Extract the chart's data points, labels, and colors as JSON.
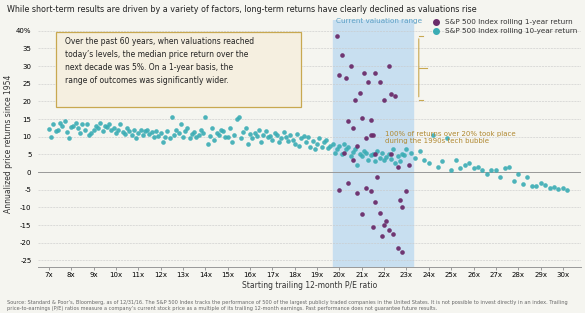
{
  "title": "While short-term results are driven by a variety of factors, long-term returns have clearly declined as valuations rise",
  "xlabel": "Starting trailing 12-month P/E ratio",
  "ylabel": "Annualized price returns since 1954",
  "xlim": [
    6.5,
    30.8
  ],
  "ylim": [
    -27,
    43
  ],
  "xticks": [
    7,
    8,
    9,
    10,
    11,
    12,
    13,
    14,
    15,
    16,
    17,
    18,
    19,
    20,
    21,
    22,
    23,
    24,
    25,
    26,
    27,
    28,
    29,
    30
  ],
  "yticks": [
    -25,
    -20,
    -15,
    -10,
    -5,
    0,
    5,
    10,
    15,
    20,
    25,
    30,
    35,
    40
  ],
  "ytick_labels": [
    "-25",
    "-20",
    "-15",
    "-10",
    "-5",
    "0",
    "5",
    "10",
    "15",
    "20",
    "25",
    "30",
    "35",
    "40%"
  ],
  "color_1yr": "#6b2d6b",
  "color_10yr": "#3aacb4",
  "shading_color": "#c8dff0",
  "shading_xmin": 19.7,
  "shading_xmax": 23.3,
  "bg_color": "#f5f5f0",
  "annotation_box_color": "#f5efe0",
  "annotation_box_edge": "#c8a850",
  "annotation_text": "Over the past 60 years, when valuations reached\ntoday’s levels, the median price return over the\nnext decade was 5%. On a 1-year basis, the\nrange of outcomes was significantly wider.",
  "current_valuation_label": "Current valuation range",
  "legend_1yr": "S&P 500 Index rolling 1-year return",
  "legend_10yr": "S&P 500 Index rolling 10-year return",
  "bubble_annotation": "100% of returns over 20% took place\nduring the 1990s tech bubble",
  "footnote": "Source: Standard & Poor’s, Bloomberg, as of 12/31/16. The S&P 500 Index tracks the performance of 500 of the largest publicly traded companies in the United States. It is not possible to invest directly in an index. Trailing price-to-earnings (P/E) ratios measure a company’s current stock price as a multiple of its trailing 12-month earnings. Past performance does not guarantee future results.",
  "data_10yr": [
    [
      7.0,
      12.2
    ],
    [
      7.1,
      10.0
    ],
    [
      7.2,
      13.5
    ],
    [
      7.3,
      11.5
    ],
    [
      7.4,
      12.0
    ],
    [
      7.5,
      14.0
    ],
    [
      7.6,
      13.0
    ],
    [
      7.7,
      14.5
    ],
    [
      7.8,
      11.2
    ],
    [
      7.9,
      9.5
    ],
    [
      8.0,
      12.8
    ],
    [
      8.1,
      13.0
    ],
    [
      8.2,
      14.0
    ],
    [
      8.3,
      12.5
    ],
    [
      8.4,
      11.0
    ],
    [
      8.5,
      13.5
    ],
    [
      8.6,
      12.0
    ],
    [
      8.7,
      13.5
    ],
    [
      8.8,
      10.5
    ],
    [
      8.9,
      11.0
    ],
    [
      9.0,
      12.0
    ],
    [
      9.1,
      13.0
    ],
    [
      9.2,
      12.5
    ],
    [
      9.3,
      14.0
    ],
    [
      9.4,
      11.5
    ],
    [
      9.5,
      13.0
    ],
    [
      9.6,
      12.8
    ],
    [
      9.7,
      13.5
    ],
    [
      9.8,
      11.8
    ],
    [
      9.9,
      12.5
    ],
    [
      10.0,
      11.0
    ],
    [
      10.1,
      12.0
    ],
    [
      10.2,
      13.5
    ],
    [
      10.3,
      11.2
    ],
    [
      10.4,
      10.8
    ],
    [
      10.5,
      12.5
    ],
    [
      10.6,
      11.5
    ],
    [
      10.7,
      10.5
    ],
    [
      10.8,
      11.8
    ],
    [
      10.9,
      9.5
    ],
    [
      11.0,
      11.0
    ],
    [
      11.1,
      12.0
    ],
    [
      11.2,
      10.5
    ],
    [
      11.3,
      11.5
    ],
    [
      11.4,
      12.0
    ],
    [
      11.5,
      10.8
    ],
    [
      11.6,
      11.2
    ],
    [
      11.7,
      9.8
    ],
    [
      11.8,
      11.5
    ],
    [
      11.9,
      10.2
    ],
    [
      12.0,
      11.0
    ],
    [
      12.1,
      8.5
    ],
    [
      12.2,
      10.0
    ],
    [
      12.3,
      11.5
    ],
    [
      12.4,
      9.5
    ],
    [
      12.5,
      15.5
    ],
    [
      12.6,
      10.5
    ],
    [
      12.7,
      12.0
    ],
    [
      12.8,
      11.0
    ],
    [
      12.9,
      13.5
    ],
    [
      13.0,
      10.0
    ],
    [
      13.1,
      11.5
    ],
    [
      13.2,
      12.5
    ],
    [
      13.3,
      9.5
    ],
    [
      13.4,
      10.8
    ],
    [
      13.5,
      11.2
    ],
    [
      13.6,
      9.8
    ],
    [
      13.7,
      10.5
    ],
    [
      13.8,
      12.0
    ],
    [
      13.9,
      11.0
    ],
    [
      14.0,
      15.5
    ],
    [
      14.1,
      8.0
    ],
    [
      14.2,
      10.2
    ],
    [
      14.3,
      12.5
    ],
    [
      14.4,
      9.0
    ],
    [
      14.5,
      11.0
    ],
    [
      14.6,
      10.5
    ],
    [
      14.7,
      12.0
    ],
    [
      14.8,
      11.5
    ],
    [
      14.9,
      9.8
    ],
    [
      15.0,
      10.0
    ],
    [
      15.1,
      12.5
    ],
    [
      15.2,
      8.5
    ],
    [
      15.3,
      10.5
    ],
    [
      15.4,
      15.0
    ],
    [
      15.5,
      15.5
    ],
    [
      15.6,
      9.5
    ],
    [
      15.7,
      11.2
    ],
    [
      15.8,
      12.5
    ],
    [
      15.9,
      8.0
    ],
    [
      16.0,
      10.8
    ],
    [
      16.1,
      9.5
    ],
    [
      16.2,
      11.0
    ],
    [
      16.3,
      10.2
    ],
    [
      16.4,
      12.0
    ],
    [
      16.5,
      8.5
    ],
    [
      16.6,
      10.5
    ],
    [
      16.7,
      11.5
    ],
    [
      16.8,
      9.8
    ],
    [
      16.9,
      10.2
    ],
    [
      17.0,
      9.0
    ],
    [
      17.1,
      11.0
    ],
    [
      17.2,
      10.5
    ],
    [
      17.3,
      8.5
    ],
    [
      17.4,
      9.5
    ],
    [
      17.5,
      11.2
    ],
    [
      17.6,
      10.0
    ],
    [
      17.7,
      8.8
    ],
    [
      17.8,
      10.5
    ],
    [
      17.9,
      9.2
    ],
    [
      18.0,
      8.0
    ],
    [
      18.1,
      10.8
    ],
    [
      18.2,
      7.5
    ],
    [
      18.3,
      9.5
    ],
    [
      18.4,
      10.2
    ],
    [
      18.5,
      8.5
    ],
    [
      18.6,
      9.8
    ],
    [
      18.7,
      7.2
    ],
    [
      18.8,
      8.8
    ],
    [
      18.9,
      6.5
    ],
    [
      19.0,
      8.0
    ],
    [
      19.1,
      9.5
    ],
    [
      19.2,
      7.0
    ],
    [
      19.3,
      8.5
    ],
    [
      19.4,
      9.2
    ],
    [
      19.5,
      6.8
    ],
    [
      19.6,
      7.5
    ],
    [
      19.7,
      8.0
    ],
    [
      19.8,
      5.5
    ],
    [
      19.9,
      6.5
    ],
    [
      20.0,
      7.5
    ],
    [
      20.1,
      5.0
    ],
    [
      20.2,
      8.0
    ],
    [
      20.3,
      6.5
    ],
    [
      20.4,
      7.0
    ],
    [
      20.5,
      4.5
    ],
    [
      20.6,
      5.8
    ],
    [
      20.7,
      6.5
    ],
    [
      20.8,
      2.0
    ],
    [
      20.9,
      5.0
    ],
    [
      21.0,
      4.5
    ],
    [
      21.1,
      6.0
    ],
    [
      21.2,
      5.5
    ],
    [
      21.3,
      3.5
    ],
    [
      21.4,
      4.8
    ],
    [
      21.5,
      5.2
    ],
    [
      21.6,
      3.0
    ],
    [
      21.7,
      6.0
    ],
    [
      21.8,
      4.0
    ],
    [
      21.9,
      5.5
    ],
    [
      22.0,
      3.5
    ],
    [
      22.1,
      4.2
    ],
    [
      22.2,
      5.0
    ],
    [
      22.3,
      3.8
    ],
    [
      22.4,
      6.5
    ],
    [
      22.5,
      2.5
    ],
    [
      22.6,
      4.5
    ],
    [
      22.7,
      3.0
    ],
    [
      22.8,
      5.0
    ],
    [
      22.9,
      4.8
    ],
    [
      23.0,
      6.5
    ],
    [
      23.2,
      5.5
    ],
    [
      23.4,
      4.0
    ],
    [
      23.6,
      6.0
    ],
    [
      23.8,
      3.5
    ],
    [
      24.0,
      2.5
    ],
    [
      24.2,
      10.5
    ],
    [
      24.4,
      1.5
    ],
    [
      24.6,
      3.0
    ],
    [
      24.8,
      9.5
    ],
    [
      25.0,
      0.5
    ],
    [
      25.2,
      3.5
    ],
    [
      25.4,
      1.0
    ],
    [
      25.6,
      2.0
    ],
    [
      25.8,
      2.5
    ],
    [
      26.0,
      1.0
    ],
    [
      26.2,
      1.5
    ],
    [
      26.4,
      0.5
    ],
    [
      26.6,
      -0.5
    ],
    [
      26.8,
      0.5
    ],
    [
      27.0,
      0.5
    ],
    [
      27.2,
      -1.5
    ],
    [
      27.4,
      1.0
    ],
    [
      27.6,
      1.5
    ],
    [
      27.8,
      -2.5
    ],
    [
      28.0,
      -0.5
    ],
    [
      28.2,
      -3.5
    ],
    [
      28.4,
      -1.5
    ],
    [
      28.6,
      -4.0
    ],
    [
      28.8,
      -4.0
    ],
    [
      29.0,
      -3.0
    ],
    [
      29.2,
      -3.8
    ],
    [
      29.4,
      -4.5
    ],
    [
      29.6,
      -4.2
    ],
    [
      29.8,
      -4.8
    ],
    [
      30.0,
      -4.5
    ],
    [
      30.2,
      -5.2
    ]
  ],
  "data_1yr": [
    [
      19.9,
      38.5
    ],
    [
      20.1,
      33.0
    ],
    [
      20.3,
      26.5
    ],
    [
      20.5,
      30.0
    ],
    [
      20.0,
      27.5
    ],
    [
      20.7,
      20.5
    ],
    [
      20.9,
      22.5
    ],
    [
      21.1,
      28.0
    ],
    [
      21.3,
      25.5
    ],
    [
      20.4,
      14.5
    ],
    [
      20.6,
      12.5
    ],
    [
      20.8,
      7.5
    ],
    [
      21.0,
      15.2
    ],
    [
      21.2,
      9.5
    ],
    [
      21.4,
      14.8
    ],
    [
      21.5,
      10.5
    ],
    [
      21.6,
      5.0
    ],
    [
      21.7,
      -1.5
    ],
    [
      21.4,
      -5.5
    ],
    [
      21.6,
      -8.5
    ],
    [
      21.8,
      -11.5
    ],
    [
      22.0,
      -15.0
    ],
    [
      22.2,
      -16.5
    ],
    [
      22.4,
      -17.5
    ],
    [
      22.6,
      -21.5
    ],
    [
      22.8,
      -22.5
    ],
    [
      21.0,
      -12.0
    ],
    [
      20.8,
      -6.0
    ],
    [
      21.2,
      -4.5
    ],
    [
      20.6,
      3.5
    ],
    [
      20.4,
      -3.0
    ],
    [
      22.0,
      20.5
    ],
    [
      22.5,
      21.5
    ],
    [
      22.2,
      30.0
    ],
    [
      21.8,
      25.5
    ],
    [
      21.6,
      28.0
    ],
    [
      22.8,
      -10.0
    ],
    [
      23.0,
      -5.5
    ],
    [
      23.1,
      2.0
    ],
    [
      22.3,
      5.0
    ],
    [
      22.6,
      1.5
    ],
    [
      21.4,
      10.5
    ],
    [
      20.2,
      5.5
    ],
    [
      20.0,
      -5.0
    ],
    [
      21.9,
      -18.0
    ],
    [
      22.1,
      -14.0
    ],
    [
      22.7,
      -8.0
    ],
    [
      22.3,
      22.0
    ],
    [
      21.5,
      -15.5
    ]
  ]
}
